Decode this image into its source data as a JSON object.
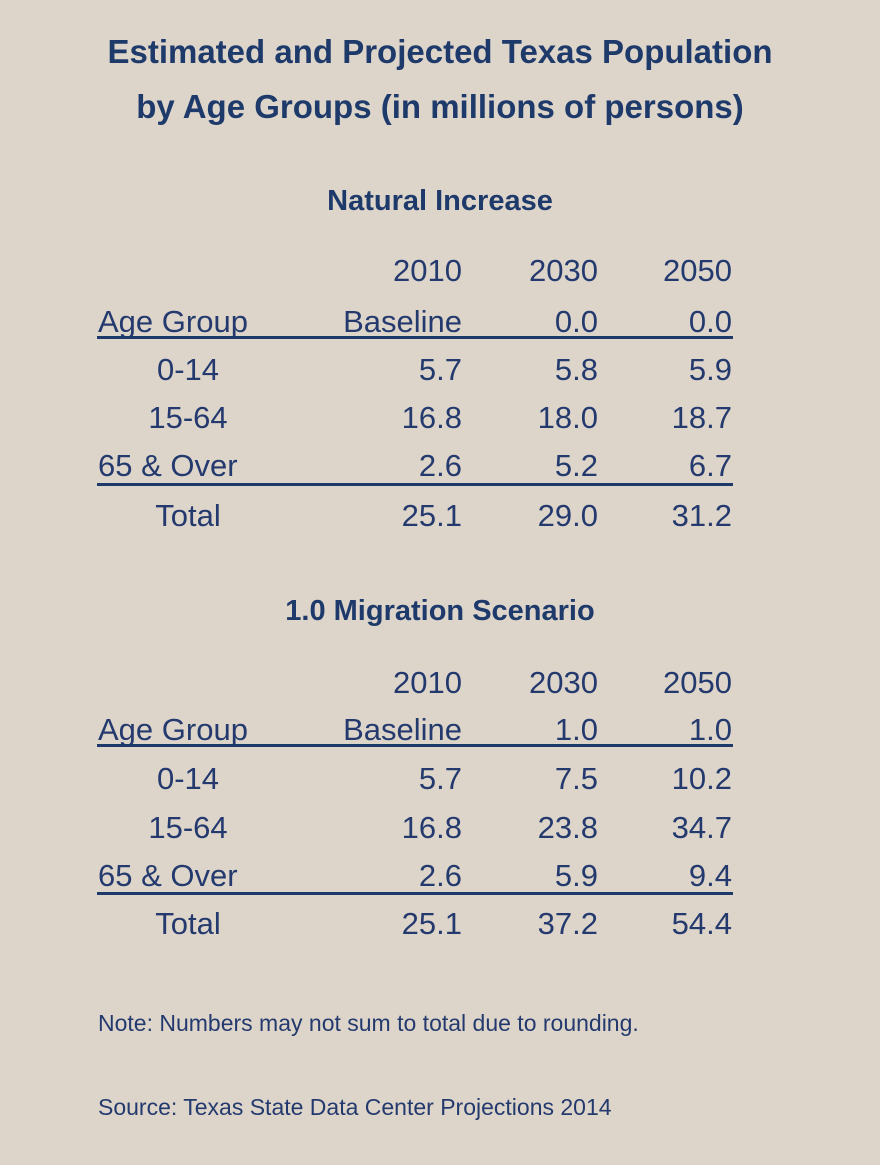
{
  "title_line1": "Estimated and Projected Texas Population",
  "title_line2": "by Age Groups (in millions of persons)",
  "chart_data": [
    {
      "type": "table",
      "title": "Natural Increase",
      "header_years": [
        "2010",
        "2030",
        "2050"
      ],
      "header_row": [
        "Age Group",
        "Baseline",
        "0.0",
        "0.0"
      ],
      "rows": [
        {
          "label": "0-14",
          "values": [
            "5.7",
            "5.8",
            "5.9"
          ]
        },
        {
          "label": "15-64",
          "values": [
            "16.8",
            "18.0",
            "18.7"
          ]
        },
        {
          "label": "65 & Over",
          "values": [
            "2.6",
            "5.2",
            "6.7"
          ]
        }
      ],
      "total": {
        "label": "Total",
        "values": [
          "25.1",
          "29.0",
          "31.2"
        ]
      }
    },
    {
      "type": "table",
      "title": "1.0 Migration Scenario",
      "header_years": [
        "2010",
        "2030",
        "2050"
      ],
      "header_row": [
        "Age Group",
        "Baseline",
        "1.0",
        "1.0"
      ],
      "rows": [
        {
          "label": "0-14",
          "values": [
            "5.7",
            "7.5",
            "10.2"
          ]
        },
        {
          "label": "15-64",
          "values": [
            "16.8",
            "23.8",
            "34.7"
          ]
        },
        {
          "label": "65 & Over",
          "values": [
            "2.6",
            "5.9",
            "9.4"
          ]
        }
      ],
      "total": {
        "label": "Total",
        "values": [
          "25.1",
          "37.2",
          "54.4"
        ]
      }
    }
  ],
  "note": "Note: Numbers may not sum to total due to rounding.",
  "source": "Source: Texas State Data Center Projections 2014",
  "colors": {
    "background": "#ddd5ca",
    "text": "#243a6e",
    "rule": "#1e3a6b"
  }
}
